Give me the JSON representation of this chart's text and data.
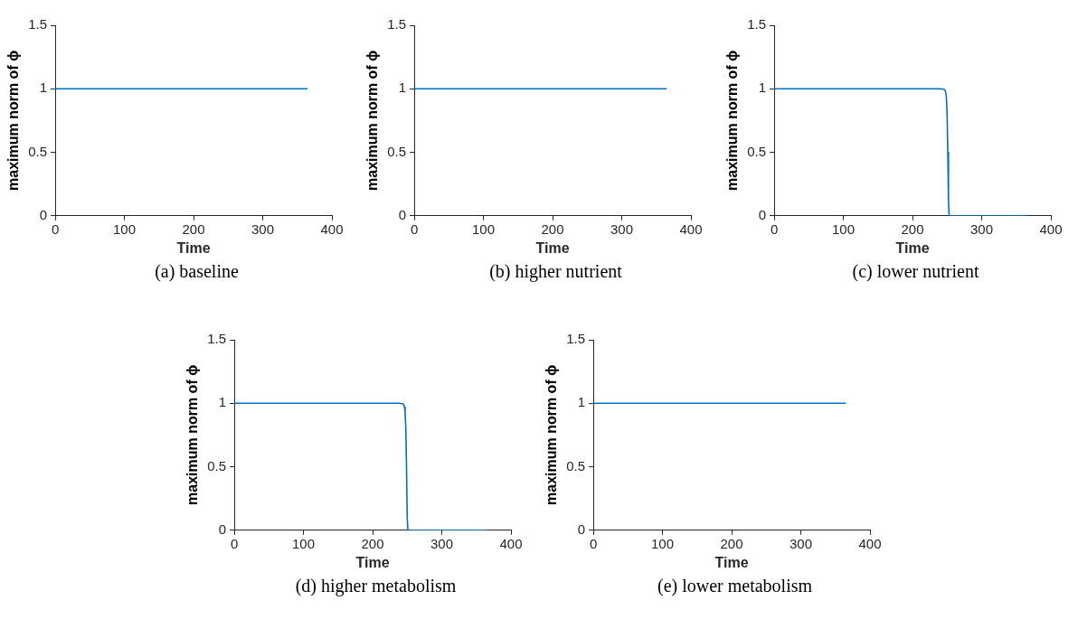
{
  "chart_data": [
    {
      "type": "line",
      "title": "(a) baseline",
      "xlabel": "Time",
      "ylabel": "maximum norm of ϕ",
      "x": [
        0,
        365
      ],
      "values": [
        1,
        1
      ],
      "color": "#0072bd",
      "xlim": [
        0,
        400
      ],
      "xticks": [
        0,
        100,
        200,
        300,
        400
      ],
      "ylim": [
        0,
        1.5
      ],
      "yticks": [
        0,
        0.5,
        1,
        1.5
      ],
      "grid": false
    },
    {
      "type": "line",
      "title": "(b) higher nutrient",
      "xlabel": "Time",
      "ylabel": "maximum norm of ϕ",
      "x": [
        0,
        365
      ],
      "values": [
        1,
        1
      ],
      "color": "#0072bd",
      "xlim": [
        0,
        400
      ],
      "xticks": [
        0,
        100,
        200,
        300,
        400
      ],
      "ylim": [
        0,
        1.5
      ],
      "yticks": [
        0,
        0.5,
        1,
        1.5
      ],
      "grid": false
    },
    {
      "type": "line",
      "title": "(c) lower nutrient",
      "xlabel": "Time",
      "ylabel": "maximum norm of ϕ",
      "x": [
        0,
        240,
        245,
        247,
        248,
        249,
        250,
        251,
        252,
        253,
        365
      ],
      "values": [
        1,
        1,
        0.997,
        0.99,
        0.97,
        0.93,
        0.8,
        0.5,
        0.1,
        0,
        0
      ],
      "color": "#0072bd",
      "xlim": [
        0,
        400
      ],
      "xticks": [
        0,
        100,
        200,
        300,
        400
      ],
      "ylim": [
        0,
        1.5
      ],
      "yticks": [
        0,
        0.5,
        1,
        1.5
      ],
      "grid": false
    },
    {
      "type": "line",
      "title": "(d) higher metabolism",
      "xlabel": "Time",
      "ylabel": "maximum norm of ϕ",
      "x": [
        0,
        238,
        243,
        245,
        246,
        247,
        248,
        249,
        250,
        251,
        365
      ],
      "values": [
        1,
        1,
        0.997,
        0.99,
        0.97,
        0.93,
        0.8,
        0.5,
        0.1,
        0,
        0
      ],
      "color": "#0072bd",
      "xlim": [
        0,
        400
      ],
      "xticks": [
        0,
        100,
        200,
        300,
        400
      ],
      "ylim": [
        0,
        1.5
      ],
      "yticks": [
        0,
        0.5,
        1,
        1.5
      ],
      "grid": false
    },
    {
      "type": "line",
      "title": "(e) lower metabolism",
      "xlabel": "Time",
      "ylabel": "maximum norm of ϕ",
      "x": [
        0,
        365
      ],
      "values": [
        1,
        1
      ],
      "color": "#0072bd",
      "xlim": [
        0,
        400
      ],
      "xticks": [
        0,
        100,
        200,
        300,
        400
      ],
      "ylim": [
        0,
        1.5
      ],
      "yticks": [
        0,
        0.5,
        1,
        1.5
      ],
      "grid": false
    }
  ]
}
